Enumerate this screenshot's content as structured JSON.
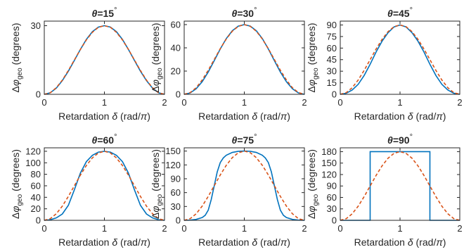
{
  "figure": {
    "x_axis_label": "Retardation δ (rad/π)",
    "y_axis_label": "Δφgeo (degrees)"
  },
  "colors": {
    "exact": "#0072bd",
    "approximation": "#d95319",
    "axes": "#262626",
    "background": "#ffffff"
  },
  "chart_data": [
    {
      "type": "line",
      "title": "θ=15°",
      "theta_deg": 15,
      "xlabel": "Retardation δ (rad/π)",
      "ylabel": "Δφgeo (degrees)",
      "xlim": [
        0,
        2
      ],
      "ylim": [
        0,
        32
      ],
      "xticks": [
        0,
        1,
        2
      ],
      "yticks": [
        0,
        30
      ],
      "grid": false,
      "series": [
        {
          "style": "solid",
          "color": "#0072bd",
          "x": [
            0,
            0.1,
            0.2,
            0.3,
            0.4,
            0.5,
            0.6,
            0.7,
            0.8,
            0.9,
            1.0,
            1.1,
            1.2,
            1.3,
            1.4,
            1.5,
            1.6,
            1.7,
            1.8,
            1.9,
            2.0
          ],
          "y": [
            0,
            0.7,
            2.7,
            6.0,
            10.1,
            14.8,
            19.6,
            24.0,
            27.4,
            29.4,
            30.0,
            29.4,
            27.4,
            24.0,
            19.6,
            14.8,
            10.1,
            6.0,
            2.7,
            0.7,
            0
          ]
        },
        {
          "style": "dashed",
          "color": "#d95319",
          "x": [
            0,
            0.1,
            0.2,
            0.3,
            0.4,
            0.5,
            0.6,
            0.7,
            0.8,
            0.9,
            1.0,
            1.1,
            1.2,
            1.3,
            1.4,
            1.5,
            1.6,
            1.7,
            1.8,
            1.9,
            2.0
          ],
          "y": [
            0,
            0.7,
            2.9,
            6.2,
            10.4,
            15.0,
            19.6,
            23.8,
            27.1,
            29.3,
            30.0,
            29.3,
            27.1,
            23.8,
            19.6,
            15.0,
            10.4,
            6.2,
            2.9,
            0.7,
            0
          ]
        }
      ]
    },
    {
      "type": "line",
      "title": "θ=30°",
      "theta_deg": 30,
      "xlabel": "Retardation δ (rad/π)",
      "ylabel": "Δφgeo (degrees)",
      "xlim": [
        0,
        2
      ],
      "ylim": [
        0,
        63
      ],
      "xticks": [
        0,
        1,
        2
      ],
      "yticks": [
        0,
        20,
        40,
        60
      ],
      "grid": false,
      "series": [
        {
          "style": "solid",
          "color": "#0072bd",
          "x": [
            0,
            0.1,
            0.2,
            0.3,
            0.4,
            0.5,
            0.6,
            0.7,
            0.8,
            0.9,
            1.0,
            1.1,
            1.2,
            1.3,
            1.4,
            1.5,
            1.6,
            1.7,
            1.8,
            1.9,
            2.0
          ],
          "y": [
            0,
            1.2,
            4.8,
            10.9,
            19.2,
            29.0,
            39.0,
            48.0,
            54.7,
            58.7,
            60.0,
            58.7,
            54.7,
            48.0,
            39.0,
            29.0,
            19.2,
            10.9,
            4.8,
            1.2,
            0
          ]
        },
        {
          "style": "dashed",
          "color": "#d95319",
          "x": [
            0,
            0.1,
            0.2,
            0.3,
            0.4,
            0.5,
            0.6,
            0.7,
            0.8,
            0.9,
            1.0,
            1.1,
            1.2,
            1.3,
            1.4,
            1.5,
            1.6,
            1.7,
            1.8,
            1.9,
            2.0
          ],
          "y": [
            0,
            1.5,
            5.7,
            12.4,
            20.7,
            30.0,
            39.3,
            47.6,
            54.3,
            58.5,
            60.0,
            58.5,
            54.3,
            47.6,
            39.3,
            30.0,
            20.7,
            12.4,
            5.7,
            1.5,
            0
          ]
        }
      ]
    },
    {
      "type": "line",
      "title": "θ=45°",
      "theta_deg": 45,
      "xlabel": "Retardation δ (rad/π)",
      "ylabel": "Δφgeo (degrees)",
      "xlim": [
        0,
        2
      ],
      "ylim": [
        0,
        95
      ],
      "xticks": [
        0,
        1,
        2
      ],
      "yticks": [
        0,
        15,
        30,
        45,
        60,
        75,
        90
      ],
      "grid": false,
      "series": [
        {
          "style": "solid",
          "color": "#0072bd",
          "x": [
            0,
            0.1,
            0.2,
            0.3,
            0.4,
            0.5,
            0.6,
            0.7,
            0.8,
            0.9,
            1.0,
            1.1,
            1.2,
            1.3,
            1.4,
            1.5,
            1.6,
            1.7,
            1.8,
            1.9,
            2.0
          ],
          "y": [
            0,
            1.4,
            5.6,
            13.0,
            24.5,
            39.0,
            55.0,
            69.0,
            80.0,
            87.5,
            90.0,
            87.5,
            80.0,
            69.0,
            55.0,
            39.0,
            24.5,
            13.0,
            5.6,
            1.4,
            0
          ]
        },
        {
          "style": "dashed",
          "color": "#d95319",
          "x": [
            0,
            0.1,
            0.2,
            0.3,
            0.4,
            0.5,
            0.6,
            0.7,
            0.8,
            0.9,
            1.0,
            1.1,
            1.2,
            1.3,
            1.4,
            1.5,
            1.6,
            1.7,
            1.8,
            1.9,
            2.0
          ],
          "y": [
            0,
            2.2,
            8.6,
            18.6,
            31.1,
            45.0,
            58.9,
            71.4,
            81.4,
            87.8,
            90.0,
            87.8,
            81.4,
            71.4,
            58.9,
            45.0,
            31.1,
            18.6,
            8.6,
            2.2,
            0
          ]
        }
      ]
    },
    {
      "type": "line",
      "title": "θ=60°",
      "theta_deg": 60,
      "xlabel": "Retardation δ (rad/π)",
      "ylabel": "Δφgeo (degrees)",
      "xlim": [
        0,
        2
      ],
      "ylim": [
        0,
        126
      ],
      "xticks": [
        0,
        1,
        2
      ],
      "yticks": [
        0,
        20,
        40,
        60,
        80,
        100,
        120
      ],
      "grid": false,
      "series": [
        {
          "style": "solid",
          "color": "#0072bd",
          "x": [
            0,
            0.1,
            0.2,
            0.3,
            0.4,
            0.5,
            0.6,
            0.7,
            0.8,
            0.9,
            1.0,
            1.1,
            1.2,
            1.3,
            1.4,
            1.5,
            1.6,
            1.7,
            1.8,
            1.9,
            2.0
          ],
          "y": [
            0,
            1.0,
            4.2,
            11.0,
            26.0,
            53.0,
            82.0,
            102.0,
            113.0,
            118.5,
            120.0,
            118.5,
            113.0,
            102.0,
            82.0,
            53.0,
            26.0,
            11.0,
            4.2,
            1.0,
            0
          ]
        },
        {
          "style": "dashed",
          "color": "#d95319",
          "x": [
            0,
            0.1,
            0.2,
            0.3,
            0.4,
            0.5,
            0.6,
            0.7,
            0.8,
            0.9,
            1.0,
            1.1,
            1.2,
            1.3,
            1.4,
            1.5,
            1.6,
            1.7,
            1.8,
            1.9,
            2.0
          ],
          "y": [
            0,
            2.9,
            11.5,
            24.7,
            41.5,
            60.0,
            78.5,
            95.3,
            108.5,
            117.1,
            120.0,
            117.1,
            108.5,
            95.3,
            78.5,
            60.0,
            41.5,
            24.7,
            11.5,
            2.9,
            0
          ]
        }
      ]
    },
    {
      "type": "line",
      "title": "θ=75°",
      "theta_deg": 75,
      "xlabel": "Retardation δ (rad/π)",
      "ylabel": "Δφgeo (degrees)",
      "xlim": [
        0,
        2
      ],
      "ylim": [
        0,
        157
      ],
      "xticks": [
        0,
        1,
        2
      ],
      "yticks": [
        0,
        30,
        60,
        90,
        120,
        150
      ],
      "grid": false,
      "series": [
        {
          "style": "solid",
          "color": "#0072bd",
          "x": [
            0,
            0.1,
            0.2,
            0.3,
            0.35,
            0.4,
            0.45,
            0.5,
            0.55,
            0.6,
            0.65,
            0.7,
            0.8,
            0.9,
            1.0,
            1.1,
            1.2,
            1.3,
            1.35,
            1.4,
            1.45,
            1.5,
            1.55,
            1.6,
            1.65,
            1.7,
            1.8,
            1.9,
            2.0
          ],
          "y": [
            0,
            0.5,
            2.0,
            6.0,
            11.0,
            22.0,
            45.0,
            75.0,
            105.0,
            125.0,
            135.0,
            141.0,
            147.0,
            149.5,
            150.0,
            149.5,
            147.0,
            141.0,
            135.0,
            125.0,
            105.0,
            75.0,
            45.0,
            22.0,
            11.0,
            6.0,
            2.0,
            0.5,
            0
          ]
        },
        {
          "style": "dashed",
          "color": "#d95319",
          "x": [
            0,
            0.1,
            0.2,
            0.3,
            0.4,
            0.5,
            0.6,
            0.7,
            0.8,
            0.9,
            1.0,
            1.1,
            1.2,
            1.3,
            1.4,
            1.5,
            1.6,
            1.7,
            1.8,
            1.9,
            2.0
          ],
          "y": [
            0,
            3.7,
            14.3,
            30.9,
            51.8,
            75.0,
            98.2,
            119.1,
            135.7,
            146.3,
            150.0,
            146.3,
            135.7,
            119.1,
            98.2,
            75.0,
            51.8,
            30.9,
            14.3,
            3.7,
            0
          ]
        }
      ]
    },
    {
      "type": "line",
      "title": "θ=90°",
      "theta_deg": 90,
      "xlabel": "Retardation δ (rad/π)",
      "ylabel": "Δφgeo (degrees)",
      "xlim": [
        0,
        2
      ],
      "ylim": [
        0,
        190
      ],
      "xticks": [
        0,
        1,
        2
      ],
      "yticks": [
        0,
        30,
        60,
        90,
        120,
        150,
        180
      ],
      "grid": false,
      "series": [
        {
          "style": "solid",
          "color": "#0072bd",
          "x": [
            0,
            0.5,
            0.5,
            1.5,
            1.5,
            2.0
          ],
          "y": [
            0,
            0,
            180,
            180,
            0,
            0
          ]
        },
        {
          "style": "dashed",
          "color": "#d95319",
          "x": [
            0,
            0.1,
            0.2,
            0.3,
            0.4,
            0.5,
            0.6,
            0.7,
            0.8,
            0.9,
            1.0,
            1.1,
            1.2,
            1.3,
            1.4,
            1.5,
            1.6,
            1.7,
            1.8,
            1.9,
            2.0
          ],
          "y": [
            0,
            4.4,
            17.2,
            37.1,
            62.2,
            90.0,
            117.8,
            142.9,
            162.8,
            175.6,
            180.0,
            175.6,
            162.8,
            142.9,
            117.8,
            90.0,
            62.2,
            37.1,
            17.2,
            4.4,
            0
          ]
        }
      ]
    }
  ]
}
